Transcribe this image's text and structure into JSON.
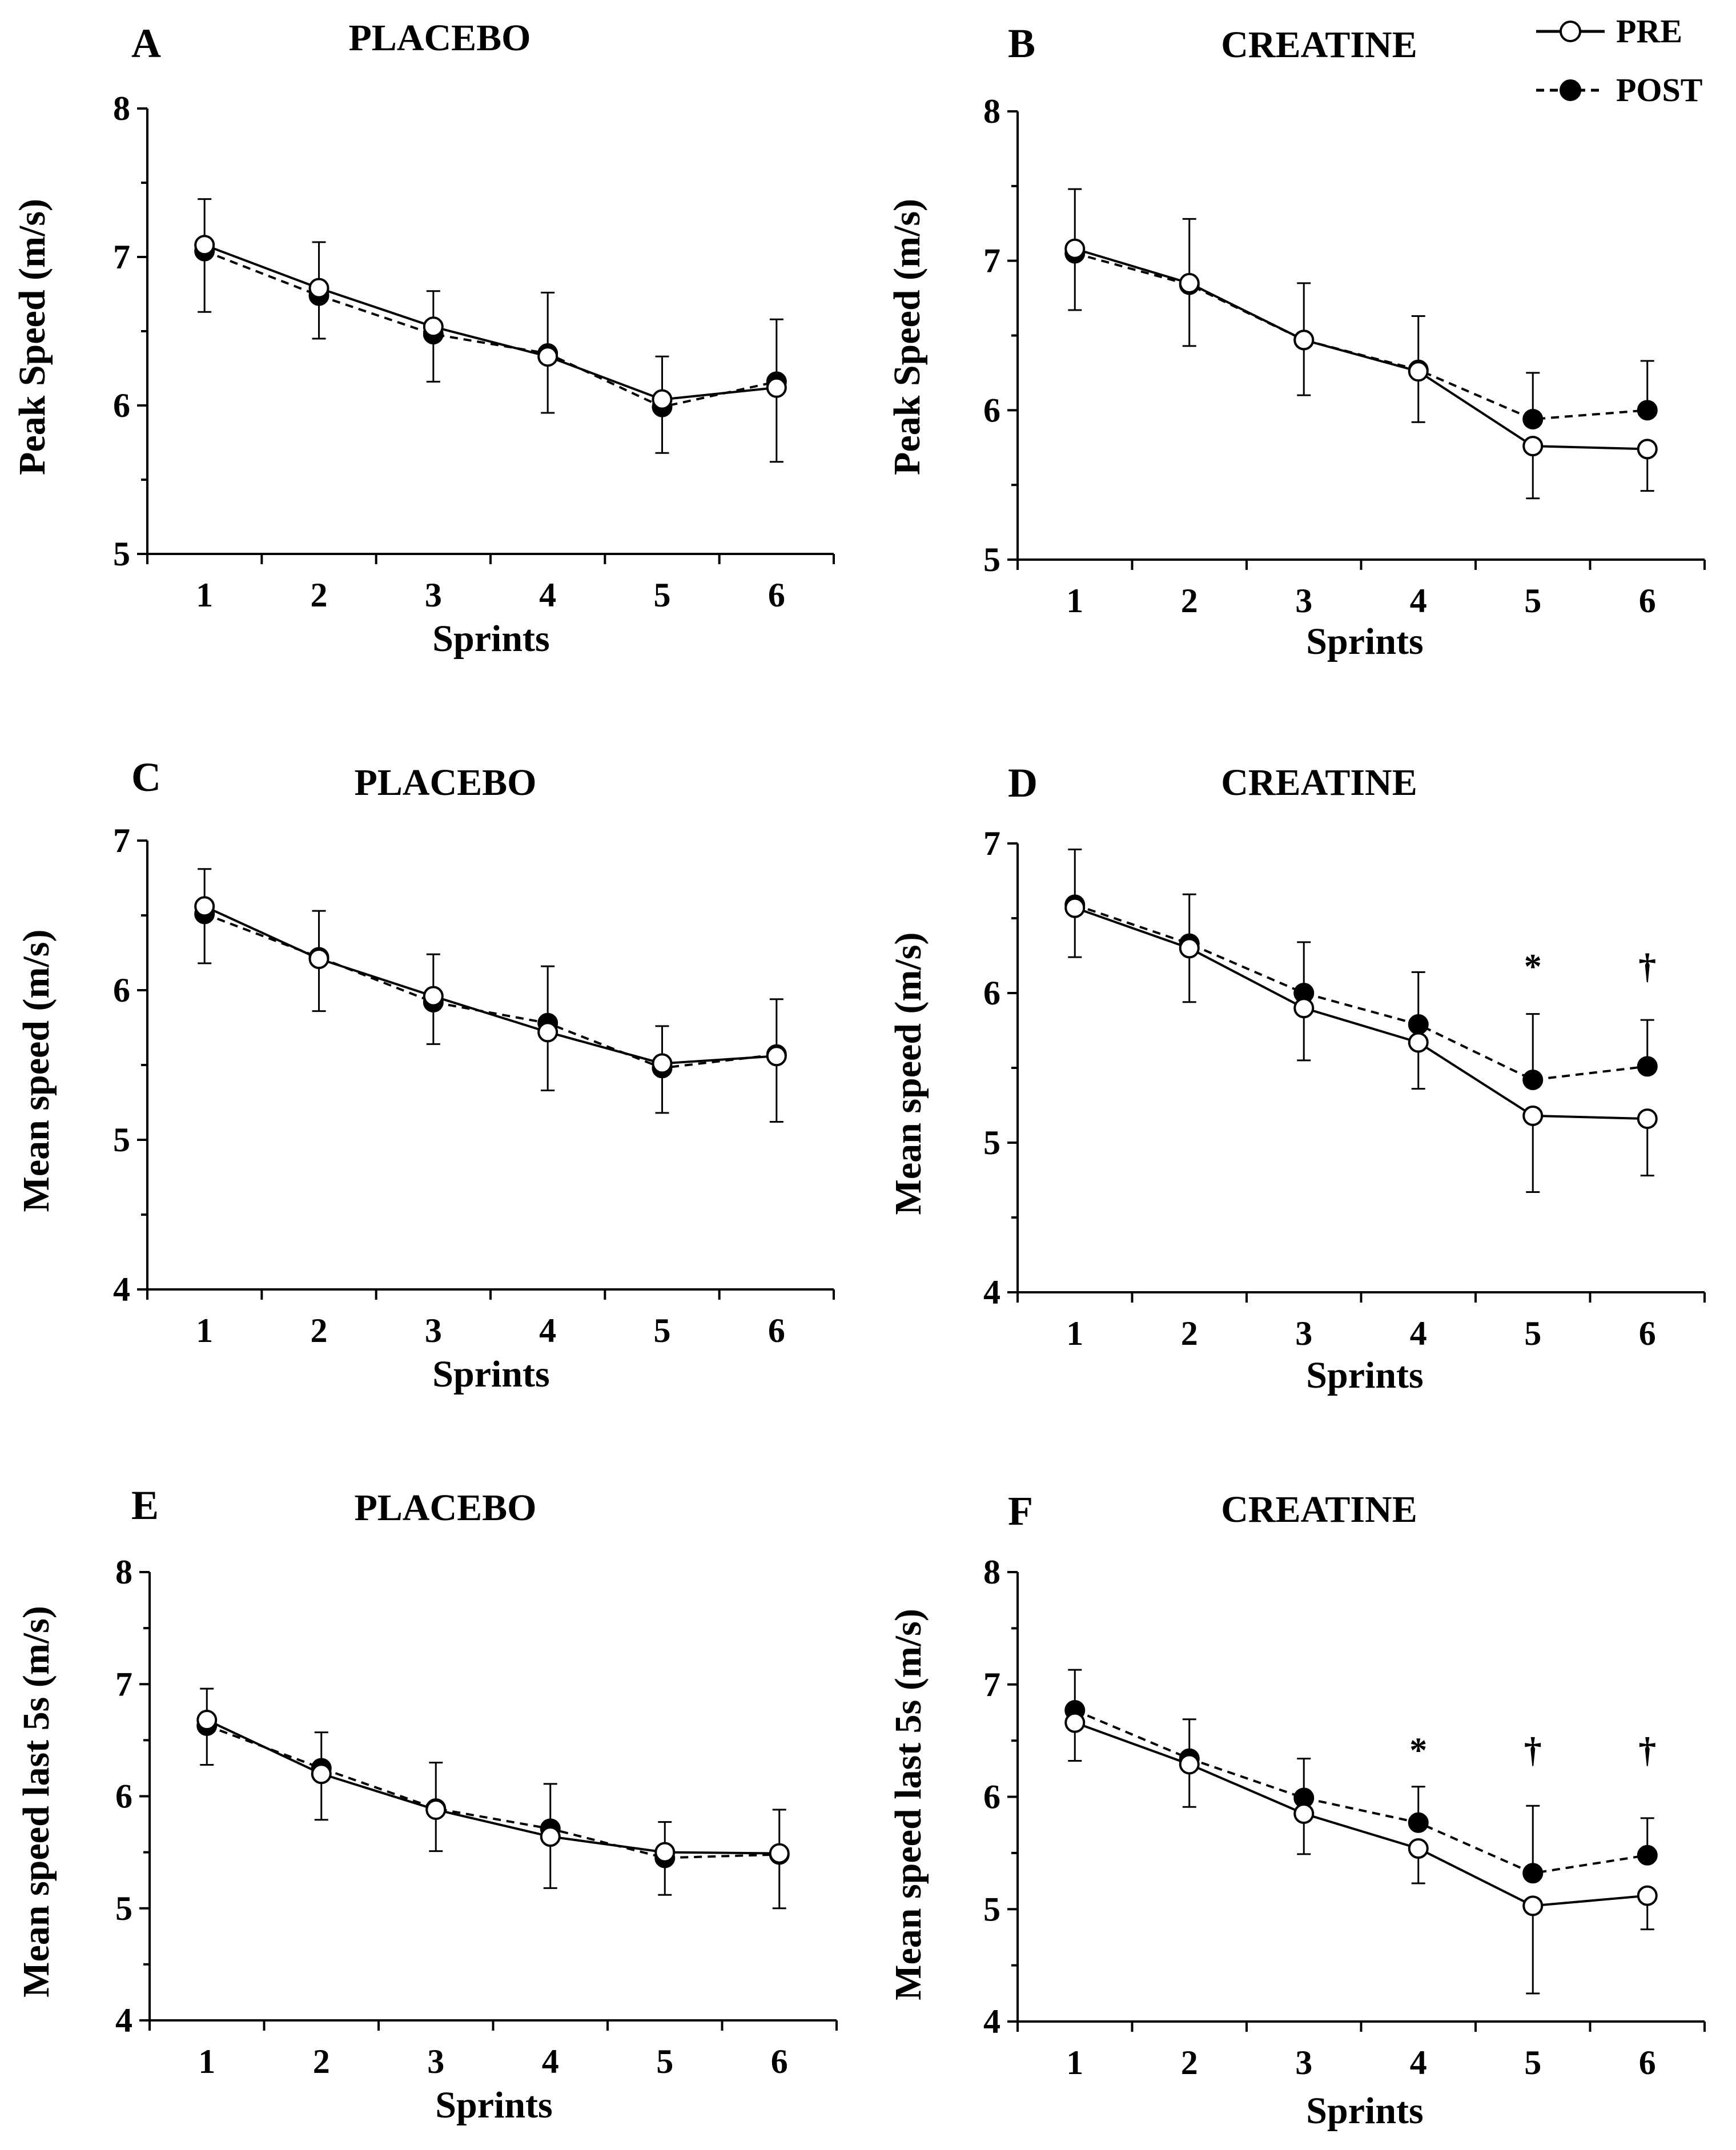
{
  "legend": {
    "pre_label": "PRE",
    "post_label": "POST"
  },
  "chart_data": [
    {
      "type": "line",
      "letter": "A",
      "title": "PLACEBO",
      "xlabel": "Sprints",
      "ylabel": "Peak Speed (m/s)",
      "categories": [
        "1",
        "2",
        "3",
        "4",
        "5",
        "6"
      ],
      "ylim": [
        5,
        8
      ],
      "yticks": [
        5,
        6,
        7,
        8
      ],
      "series": [
        {
          "name": "PRE",
          "values": [
            7.08,
            6.79,
            6.53,
            6.33,
            6.04,
            6.12
          ],
          "err_lo": [
            0,
            0,
            0,
            0.38,
            0.36,
            0.5
          ],
          "err_hi": [
            0.31,
            0,
            0,
            0,
            0.29,
            0
          ]
        },
        {
          "name": "POST",
          "values": [
            7.04,
            6.74,
            6.48,
            6.35,
            5.99,
            6.16
          ],
          "err_lo": [
            0.41,
            0.29,
            0.32,
            0,
            0,
            0
          ],
          "err_hi": [
            0,
            0.36,
            0.29,
            0.41,
            0,
            0.42
          ]
        }
      ],
      "annotations": []
    },
    {
      "type": "line",
      "letter": "B",
      "title": "CREATINE",
      "xlabel": "Sprints",
      "ylabel": "Peak Speed (m/s)",
      "categories": [
        "1",
        "2",
        "3",
        "4",
        "5",
        "6"
      ],
      "ylim": [
        5,
        8
      ],
      "yticks": [
        5,
        6,
        7,
        8
      ],
      "series": [
        {
          "name": "PRE",
          "values": [
            7.08,
            6.85,
            6.47,
            6.26,
            5.76,
            5.74
          ],
          "err_lo": [
            0.41,
            0.42,
            0.37,
            0.34,
            0.35,
            0.28
          ],
          "err_hi": [
            0,
            0,
            0,
            0,
            0,
            0
          ]
        },
        {
          "name": "POST",
          "values": [
            7.05,
            6.84,
            6.47,
            6.27,
            5.94,
            6.0
          ],
          "err_lo": [
            0,
            0,
            0,
            0,
            0,
            0
          ],
          "err_hi": [
            0.43,
            0.44,
            0.38,
            0.36,
            0.31,
            0.33
          ]
        }
      ],
      "annotations": []
    },
    {
      "type": "line",
      "letter": "C",
      "title": "PLACEBO",
      "xlabel": "Sprints",
      "ylabel": "Mean speed (m/s)",
      "categories": [
        "1",
        "2",
        "3",
        "4",
        "5",
        "6"
      ],
      "ylim": [
        4,
        7
      ],
      "yticks": [
        4,
        5,
        6,
        7
      ],
      "series": [
        {
          "name": "PRE",
          "values": [
            6.56,
            6.21,
            5.96,
            5.72,
            5.51,
            5.56
          ],
          "err_lo": [
            0,
            0.35,
            0.32,
            0.39,
            0.33,
            0.44
          ],
          "err_hi": [
            0.25,
            0,
            0,
            0,
            0,
            0
          ]
        },
        {
          "name": "POST",
          "values": [
            6.51,
            6.22,
            5.92,
            5.78,
            5.48,
            5.57
          ],
          "err_lo": [
            0.33,
            0,
            0,
            0,
            0,
            0
          ],
          "err_hi": [
            0,
            0.31,
            0.32,
            0.38,
            0.28,
            0.37
          ]
        }
      ],
      "annotations": []
    },
    {
      "type": "line",
      "letter": "D",
      "title": "CREATINE",
      "xlabel": "Sprints",
      "ylabel": "Mean speed (m/s)",
      "categories": [
        "1",
        "2",
        "3",
        "4",
        "5",
        "6"
      ],
      "ylim": [
        4,
        7
      ],
      "yticks": [
        4,
        5,
        6,
        7
      ],
      "series": [
        {
          "name": "PRE",
          "values": [
            6.57,
            6.3,
            5.9,
            5.67,
            5.18,
            5.16
          ],
          "err_lo": [
            0.33,
            0.36,
            0.35,
            0.31,
            0.51,
            0.38
          ],
          "err_hi": [
            0,
            0,
            0,
            0,
            0,
            0
          ]
        },
        {
          "name": "POST",
          "values": [
            6.59,
            6.33,
            6.0,
            5.79,
            5.42,
            5.51
          ],
          "err_lo": [
            0,
            0,
            0,
            0,
            0,
            0
          ],
          "err_hi": [
            0.37,
            0.33,
            0.34,
            0.35,
            0.44,
            0.31
          ]
        }
      ],
      "annotations": [
        {
          "x_index": 4,
          "y": 6.1,
          "text": "*"
        },
        {
          "x_index": 5,
          "y": 6.1,
          "text": "†"
        }
      ]
    },
    {
      "type": "line",
      "letter": "E",
      "title": "PLACEBO",
      "xlabel": "Sprints",
      "ylabel": "Mean speed last 5s (m/s)",
      "categories": [
        "1",
        "2",
        "3",
        "4",
        "5",
        "6"
      ],
      "ylim": [
        4,
        8
      ],
      "yticks": [
        4,
        5,
        6,
        7,
        8
      ],
      "series": [
        {
          "name": "PRE",
          "values": [
            6.68,
            6.2,
            5.88,
            5.64,
            5.5,
            5.49
          ],
          "err_lo": [
            0,
            0.41,
            0.37,
            0.46,
            0.38,
            0.49
          ],
          "err_hi": [
            0.28,
            0,
            0,
            0,
            0,
            0
          ]
        },
        {
          "name": "POST",
          "values": [
            6.63,
            6.25,
            5.89,
            5.71,
            5.45,
            5.48
          ],
          "err_lo": [
            0.35,
            0,
            0,
            0,
            0,
            0
          ],
          "err_hi": [
            0,
            0.32,
            0.41,
            0.4,
            0.32,
            0.4
          ]
        }
      ],
      "annotations": []
    },
    {
      "type": "line",
      "letter": "F",
      "title": "CREATINE",
      "xlabel": "Sprints",
      "ylabel": "Mean speed last 5s (m/s)",
      "categories": [
        "1",
        "2",
        "3",
        "4",
        "5",
        "6"
      ],
      "ylim": [
        4,
        8
      ],
      "yticks": [
        4,
        5,
        6,
        7,
        8
      ],
      "series": [
        {
          "name": "PRE",
          "values": [
            6.66,
            6.29,
            5.85,
            5.54,
            5.03,
            5.12
          ],
          "err_lo": [
            0.34,
            0.38,
            0.36,
            0.31,
            0.78,
            0.3
          ],
          "err_hi": [
            0,
            0,
            0,
            0,
            0,
            0
          ]
        },
        {
          "name": "POST",
          "values": [
            6.77,
            6.34,
            5.99,
            5.77,
            5.32,
            5.48
          ],
          "err_lo": [
            0,
            0,
            0,
            0,
            0,
            0
          ],
          "err_hi": [
            0.36,
            0.35,
            0.35,
            0.32,
            0.6,
            0.33
          ]
        }
      ],
      "annotations": [
        {
          "x_index": 3,
          "y": 6.31,
          "text": "*"
        },
        {
          "x_index": 4,
          "y": 6.31,
          "text": "†"
        },
        {
          "x_index": 5,
          "y": 6.31,
          "text": "†"
        }
      ]
    }
  ]
}
